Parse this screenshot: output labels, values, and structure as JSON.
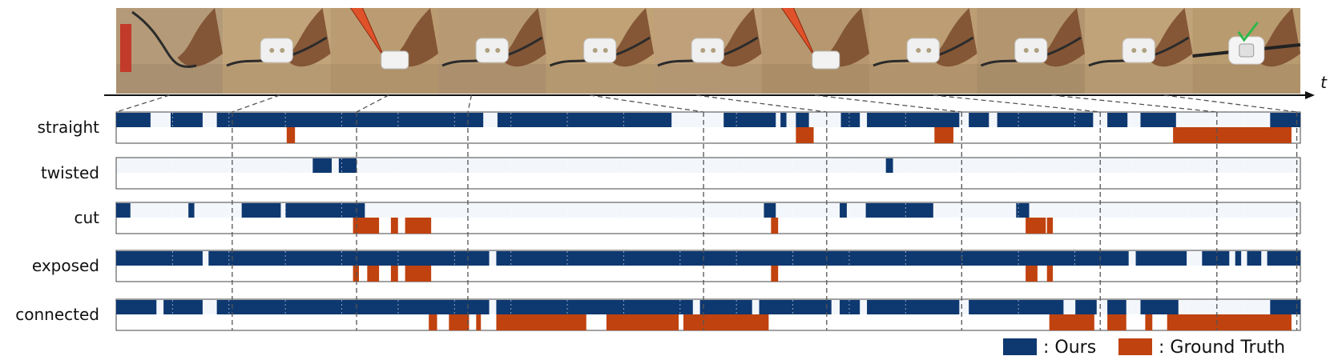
{
  "chart_data": {
    "type": "timeline",
    "time_label": "t",
    "x_range": [
      0,
      1
    ],
    "frames": [
      {
        "name": "frame-1",
        "bg": "#b49a78",
        "mark": "hands-cables"
      },
      {
        "name": "frame-2",
        "bg": "#c2a47a",
        "mark": "switch-cable"
      },
      {
        "name": "frame-3",
        "bg": "#bb9c72",
        "mark": "pliers"
      },
      {
        "name": "frame-4",
        "bg": "#b79a74",
        "mark": "hands-switch"
      },
      {
        "name": "frame-5",
        "bg": "#c0a276",
        "mark": "hands-switch"
      },
      {
        "name": "frame-6",
        "bg": "#bfa07a",
        "mark": "hands-cable"
      },
      {
        "name": "frame-7",
        "bg": "#b6976f",
        "mark": "cutter"
      },
      {
        "name": "frame-8",
        "bg": "#bd9e74",
        "mark": "open-switch"
      },
      {
        "name": "frame-9",
        "bg": "#b39670",
        "mark": "hands-switch"
      },
      {
        "name": "frame-10",
        "bg": "#c1a37a",
        "mark": "hands-switch"
      },
      {
        "name": "frame-11",
        "bg": "#b99b70",
        "mark": "switch-check"
      }
    ],
    "frame_boundaries": [
      0.0,
      0.09,
      0.181,
      0.272,
      0.363,
      0.454,
      0.545,
      0.636,
      0.727,
      0.818,
      0.909,
      1.0
    ],
    "frame_anchor_x": [
      0.045,
      0.138,
      0.23,
      0.3,
      0.4,
      0.49,
      0.59,
      0.69,
      0.79,
      0.885,
      0.97
    ],
    "dash_lines_t": [
      0.098,
      0.203,
      0.297,
      0.496,
      0.6,
      0.714,
      0.831,
      0.9295,
      0.997
    ],
    "series": [
      {
        "name": "Ours",
        "color": "#0e3870"
      },
      {
        "name": "Ground Truth",
        "color": "#c0420f"
      }
    ],
    "rows": [
      {
        "label": "straight",
        "ours": [
          [
            0,
            0.029
          ],
          [
            0.046,
            0.073
          ],
          [
            0.085,
            0.31
          ],
          [
            0.322,
            0.469
          ],
          [
            0.513,
            0.557
          ],
          [
            0.561,
            0.566
          ],
          [
            0.574,
            0.585
          ],
          [
            0.612,
            0.628
          ],
          [
            0.634,
            0.712
          ],
          [
            0.72,
            0.737
          ],
          [
            0.744,
            0.825
          ],
          [
            0.837,
            0.854
          ],
          [
            0.865,
            0.895
          ],
          [
            0.9745,
            1.0
          ]
        ],
        "gt": [
          [
            0.144,
            0.151
          ],
          [
            0.574,
            0.589
          ],
          [
            0.691,
            0.707
          ],
          [
            0.8925,
            0.9925
          ]
        ]
      },
      {
        "label": "twisted",
        "ours": [
          [
            0.166,
            0.182
          ],
          [
            0.188,
            0.203
          ],
          [
            0.65,
            0.656
          ]
        ],
        "gt": []
      },
      {
        "label": "cut",
        "ours": [
          [
            0,
            0.012
          ],
          [
            0.061,
            0.066
          ],
          [
            0.106,
            0.139
          ],
          [
            0.143,
            0.21
          ],
          [
            0.547,
            0.557
          ],
          [
            0.611,
            0.617
          ],
          [
            0.633,
            0.69
          ],
          [
            0.76,
            0.771
          ]
        ],
        "gt": [
          [
            0.2,
            0.222
          ],
          [
            0.232,
            0.238
          ],
          [
            0.244,
            0.266
          ],
          [
            0.553,
            0.559
          ],
          [
            0.768,
            0.785
          ],
          [
            0.786,
            0.791
          ]
        ]
      },
      {
        "label": "exposed",
        "ours": [
          [
            0,
            0.073
          ],
          [
            0.078,
            0.315
          ],
          [
            0.321,
            0.855
          ],
          [
            0.861,
            0.904
          ],
          [
            0.917,
            0.94
          ],
          [
            0.945,
            0.95
          ],
          [
            0.955,
            0.967
          ],
          [
            0.972,
            1.0
          ]
        ],
        "gt": [
          [
            0.2,
            0.205
          ],
          [
            0.212,
            0.222
          ],
          [
            0.232,
            0.238
          ],
          [
            0.244,
            0.266
          ],
          [
            0.553,
            0.559
          ],
          [
            0.768,
            0.778
          ],
          [
            0.786,
            0.791
          ]
        ]
      },
      {
        "label": "connected",
        "ours": [
          [
            0,
            0.034
          ],
          [
            0.04,
            0.073
          ],
          [
            0.085,
            0.315
          ],
          [
            0.321,
            0.487
          ],
          [
            0.493,
            0.537
          ],
          [
            0.543,
            0.604
          ],
          [
            0.611,
            0.628
          ],
          [
            0.634,
            0.712
          ],
          [
            0.72,
            0.8
          ],
          [
            0.81,
            0.828
          ],
          [
            0.837,
            0.853
          ],
          [
            0.865,
            0.897
          ],
          [
            0.9745,
            1.0
          ]
        ],
        "gt": [
          [
            0.264,
            0.271
          ],
          [
            0.281,
            0.298
          ],
          [
            0.304,
            0.308
          ],
          [
            0.321,
            0.397
          ],
          [
            0.414,
            0.475
          ],
          [
            0.479,
            0.551
          ],
          [
            0.788,
            0.826
          ],
          [
            0.837,
            0.853
          ],
          [
            0.869,
            0.875
          ],
          [
            0.8875,
            0.9925
          ]
        ]
      }
    ],
    "legend_position": "bottom-right"
  }
}
